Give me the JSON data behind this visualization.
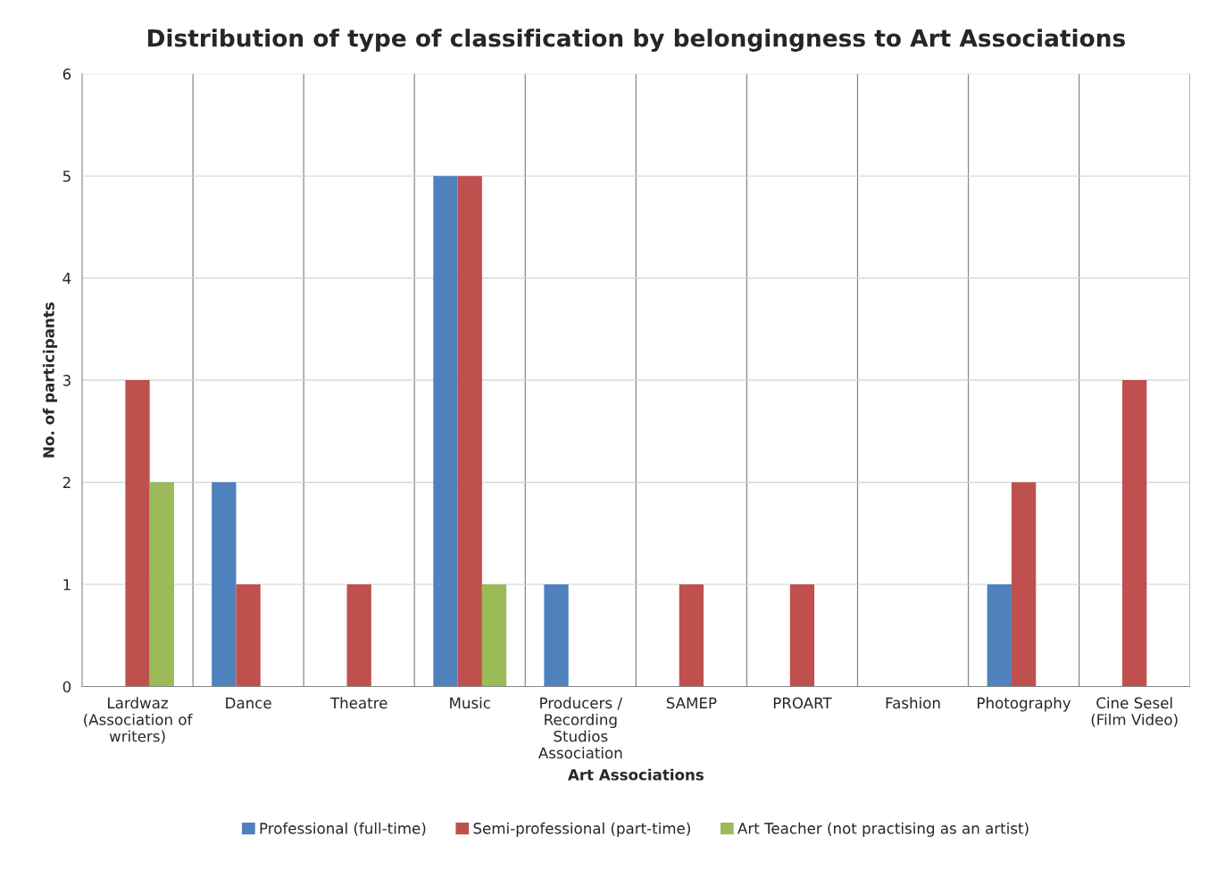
{
  "chart_data": {
    "type": "bar",
    "title": "Distribution of type of classification by belongingness to Art Associations",
    "xlabel": "Art Associations",
    "ylabel": "No. of participants",
    "categories": [
      "Lardwaz\n(Association of\nwriters)",
      "Dance",
      "Theatre",
      "Music",
      "Producers /\nRecording\nStudios\nAssociation",
      "SAMEP",
      "PROART",
      "Fashion",
      "Photography",
      "Cine Sesel\n(Film Video)"
    ],
    "series": [
      {
        "name": "Professional (full-time)",
        "color": "#4f81bd",
        "values": [
          null,
          2,
          null,
          5,
          1,
          null,
          null,
          null,
          1,
          null
        ]
      },
      {
        "name": "Semi-professional (part-time)",
        "color": "#c0504d",
        "values": [
          3,
          1,
          1,
          5,
          null,
          1,
          1,
          null,
          2,
          3
        ]
      },
      {
        "name": "Art Teacher (not practising as an artist)",
        "color": "#9bbb59",
        "values": [
          2,
          null,
          null,
          1,
          null,
          null,
          null,
          null,
          null,
          null
        ]
      }
    ],
    "ylim": [
      0,
      6
    ],
    "yticks": [
      0,
      1,
      2,
      3,
      4,
      5,
      6
    ],
    "grid": true,
    "legend": "bottom"
  }
}
